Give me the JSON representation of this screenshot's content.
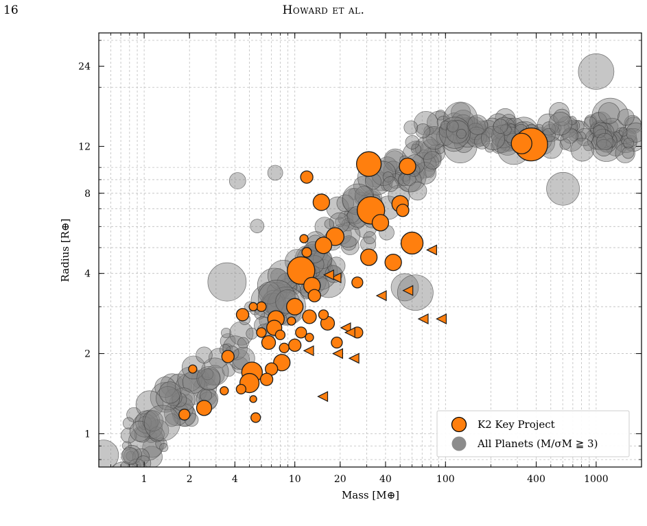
{
  "header": {
    "page_number": "16",
    "running_head": "Howard et al."
  },
  "chart_data": {
    "type": "scatter",
    "xlabel": "Mass [M⊕]",
    "ylabel": "Radius [R⊕]",
    "xscale": "log",
    "yscale": "log",
    "xlim": [
      0.5,
      2000
    ],
    "ylim": [
      0.75,
      32
    ],
    "xticks": [
      1,
      2,
      4,
      10,
      20,
      40,
      100,
      400,
      1000
    ],
    "xtick_labels": [
      "1",
      "2",
      "4",
      "10",
      "20",
      "40",
      "100",
      "400",
      "1000"
    ],
    "yticks": [
      1,
      2,
      4,
      8,
      12,
      24
    ],
    "ytick_labels": [
      "1",
      "2",
      "4",
      "8",
      "12",
      "24"
    ],
    "grid": true,
    "legend_position": "bottom-right",
    "legend": [
      {
        "label": "K2 Key Project",
        "color": "#ff7f0e",
        "marker": "circle"
      },
      {
        "label": "All Planets (M/σM ≧ 3)",
        "color": "#808080",
        "marker": "circle"
      }
    ],
    "colors": {
      "k2": "#ff7f0e",
      "all_planets": "#808080"
    },
    "series": [
      {
        "name": "K2 Key Project",
        "marker": "circle",
        "points": [
          {
            "x": 11,
            "y": 4.1,
            "size": 20
          },
          {
            "x": 31,
            "y": 10.3,
            "size": 18
          },
          {
            "x": 32,
            "y": 6.9,
            "size": 20
          },
          {
            "x": 370,
            "y": 12.2,
            "size": 24
          },
          {
            "x": 320,
            "y": 12.3,
            "size": 15
          },
          {
            "x": 60,
            "y": 5.2,
            "size": 16
          },
          {
            "x": 12,
            "y": 9.2,
            "size": 9
          },
          {
            "x": 15,
            "y": 7.4,
            "size": 12
          },
          {
            "x": 56,
            "y": 10.1,
            "size": 12
          },
          {
            "x": 50,
            "y": 7.3,
            "size": 12
          },
          {
            "x": 52,
            "y": 6.9,
            "size": 9
          },
          {
            "x": 37,
            "y": 6.2,
            "size": 12
          },
          {
            "x": 18.5,
            "y": 5.5,
            "size": 13
          },
          {
            "x": 15.5,
            "y": 5.1,
            "size": 12
          },
          {
            "x": 12,
            "y": 4.8,
            "size": 7
          },
          {
            "x": 11.5,
            "y": 5.4,
            "size": 6
          },
          {
            "x": 31,
            "y": 4.6,
            "size": 12
          },
          {
            "x": 45,
            "y": 4.4,
            "size": 12
          },
          {
            "x": 13,
            "y": 3.6,
            "size": 12
          },
          {
            "x": 13.5,
            "y": 3.3,
            "size": 9
          },
          {
            "x": 26,
            "y": 3.7,
            "size": 8
          },
          {
            "x": 10,
            "y": 3.0,
            "size": 12
          },
          {
            "x": 4.5,
            "y": 2.8,
            "size": 9
          },
          {
            "x": 5.3,
            "y": 3.0,
            "size": 6
          },
          {
            "x": 6,
            "y": 3.0,
            "size": 7
          },
          {
            "x": 7.5,
            "y": 2.7,
            "size": 12
          },
          {
            "x": 9.5,
            "y": 2.65,
            "size": 6
          },
          {
            "x": 12.5,
            "y": 2.75,
            "size": 10
          },
          {
            "x": 15.5,
            "y": 2.8,
            "size": 7
          },
          {
            "x": 16.5,
            "y": 2.6,
            "size": 10
          },
          {
            "x": 7.3,
            "y": 2.5,
            "size": 11
          },
          {
            "x": 6,
            "y": 2.4,
            "size": 7
          },
          {
            "x": 8,
            "y": 2.35,
            "size": 7
          },
          {
            "x": 11,
            "y": 2.4,
            "size": 8
          },
          {
            "x": 12.5,
            "y": 2.3,
            "size": 6
          },
          {
            "x": 26,
            "y": 2.4,
            "size": 8
          },
          {
            "x": 19,
            "y": 2.2,
            "size": 8
          },
          {
            "x": 6.7,
            "y": 2.2,
            "size": 10
          },
          {
            "x": 8.5,
            "y": 2.1,
            "size": 7
          },
          {
            "x": 10,
            "y": 2.15,
            "size": 9
          },
          {
            "x": 3.6,
            "y": 1.95,
            "size": 9
          },
          {
            "x": 8.2,
            "y": 1.85,
            "size": 12
          },
          {
            "x": 5.2,
            "y": 1.7,
            "size": 15
          },
          {
            "x": 7,
            "y": 1.75,
            "size": 9
          },
          {
            "x": 2.1,
            "y": 1.75,
            "size": 6
          },
          {
            "x": 6.5,
            "y": 1.6,
            "size": 9
          },
          {
            "x": 5,
            "y": 1.55,
            "size": 14
          },
          {
            "x": 3.4,
            "y": 1.45,
            "size": 6
          },
          {
            "x": 4.4,
            "y": 1.47,
            "size": 7
          },
          {
            "x": 5.3,
            "y": 1.35,
            "size": 5
          },
          {
            "x": 2.5,
            "y": 1.25,
            "size": 11
          },
          {
            "x": 1.85,
            "y": 1.18,
            "size": 8
          },
          {
            "x": 5.5,
            "y": 1.15,
            "size": 7
          }
        ]
      },
      {
        "name": "K2 Key Project",
        "marker": "triangle-left",
        "points": [
          {
            "x": 82,
            "y": 4.9
          },
          {
            "x": 19,
            "y": 3.85
          },
          {
            "x": 17,
            "y": 3.95
          },
          {
            "x": 38,
            "y": 3.3
          },
          {
            "x": 57,
            "y": 3.45
          },
          {
            "x": 72,
            "y": 2.7
          },
          {
            "x": 95,
            "y": 2.7
          },
          {
            "x": 22,
            "y": 2.5
          },
          {
            "x": 23.5,
            "y": 2.4
          },
          {
            "x": 12.5,
            "y": 2.05
          },
          {
            "x": 19.5,
            "y": 2.0
          },
          {
            "x": 25,
            "y": 1.92
          },
          {
            "x": 15.5,
            "y": 1.38
          }
        ]
      }
    ]
  }
}
